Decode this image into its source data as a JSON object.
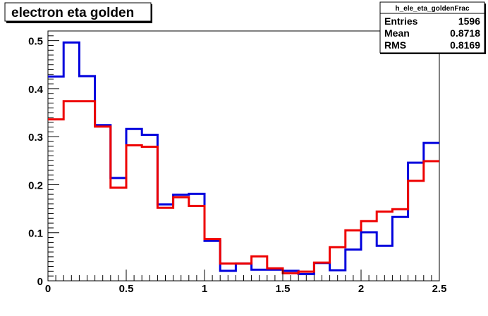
{
  "chart_data": {
    "type": "line",
    "title": "electron eta golden",
    "stats": {
      "name": "h_ele_eta_goldenFrac",
      "rows": [
        {
          "label": "Entries",
          "value": "1596"
        },
        {
          "label": "Mean",
          "value": "0.8718"
        },
        {
          "label": "RMS",
          "value": "0.8169"
        }
      ]
    },
    "xlim": [
      0,
      2.5
    ],
    "ylim": [
      0,
      0.52
    ],
    "bin_edges": [
      0.0,
      0.1,
      0.2,
      0.3,
      0.4,
      0.5,
      0.6,
      0.7,
      0.8,
      0.9,
      1.0,
      1.1,
      1.2,
      1.3,
      1.4,
      1.5,
      1.6,
      1.7,
      1.8,
      1.9,
      2.0,
      2.1,
      2.2,
      2.3,
      2.4,
      2.5
    ],
    "x_ticks": [
      {
        "value": 0,
        "label": "0"
      },
      {
        "value": 0.5,
        "label": "0.5"
      },
      {
        "value": 1,
        "label": "1"
      },
      {
        "value": 1.5,
        "label": "1.5"
      },
      {
        "value": 2,
        "label": "2"
      },
      {
        "value": 2.5,
        "label": "2.5"
      }
    ],
    "y_ticks": [
      {
        "value": 0,
        "label": "0"
      },
      {
        "value": 0.1,
        "label": "0.1"
      },
      {
        "value": 0.2,
        "label": "0.2"
      },
      {
        "value": 0.3,
        "label": "0.3"
      },
      {
        "value": 0.4,
        "label": "0.4"
      },
      {
        "value": 0.5,
        "label": "0.5"
      }
    ],
    "series": [
      {
        "color": "#0000dd",
        "values": [
          0.425,
          0.496,
          0.426,
          0.324,
          0.214,
          0.316,
          0.304,
          0.159,
          0.179,
          0.181,
          0.083,
          0.021,
          0.036,
          0.023,
          0.023,
          0.021,
          0.014,
          0.037,
          0.022,
          0.065,
          0.101,
          0.073,
          0.133,
          0.246,
          0.287
        ]
      },
      {
        "color": "#ee0000",
        "values": [
          0.336,
          0.374,
          0.374,
          0.321,
          0.194,
          0.282,
          0.279,
          0.152,
          0.174,
          0.156,
          0.087,
          0.036,
          0.036,
          0.051,
          0.026,
          0.016,
          0.019,
          0.038,
          0.07,
          0.105,
          0.124,
          0.144,
          0.149,
          0.208,
          0.249
        ]
      }
    ]
  }
}
